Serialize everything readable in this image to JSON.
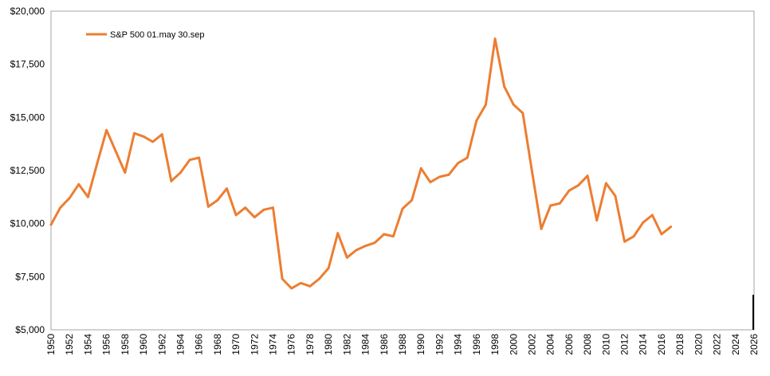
{
  "chart_data": {
    "type": "line",
    "title": "",
    "xlabel": "",
    "ylabel": "",
    "xlim": [
      1950,
      2026
    ],
    "ylim": [
      5000,
      20000
    ],
    "y_ticks": [
      5000,
      7500,
      10000,
      12500,
      15000,
      17500,
      20000
    ],
    "y_tick_labels": [
      "$5,000",
      "$7,500",
      "$10,000",
      "$12,500",
      "$15,000",
      "$17,500",
      "$20,000"
    ],
    "x_ticks": [
      1950,
      1952,
      1954,
      1956,
      1958,
      1960,
      1962,
      1964,
      1966,
      1968,
      1970,
      1972,
      1974,
      1976,
      1978,
      1980,
      1982,
      1984,
      1986,
      1988,
      1990,
      1992,
      1994,
      1996,
      1998,
      2000,
      2002,
      2004,
      2006,
      2008,
      2010,
      2012,
      2014,
      2016,
      2018,
      2020,
      2022,
      2024,
      2026
    ],
    "x_tick_labels": [
      "1950",
      "1952",
      "1954",
      "1956",
      "1958",
      "1960",
      "1962",
      "1964",
      "1966",
      "1968",
      "1970",
      "1972",
      "1974",
      "1976",
      "1978",
      "1980",
      "1982",
      "1984",
      "1986",
      "1988",
      "1990",
      "1992",
      "1994",
      "1996",
      "1998",
      "2000",
      "2002",
      "2004",
      "2006",
      "2008",
      "2010",
      "2012",
      "2014",
      "2016",
      "2018",
      "2020",
      "2022",
      "2024",
      "2026"
    ],
    "grid": false,
    "legend_position": "top-left",
    "series": [
      {
        "name": "S&P 500   01.may  30.sep",
        "color": "#ED7D31",
        "x": [
          1950,
          1951,
          1952,
          1953,
          1954,
          1955,
          1956,
          1957,
          1958,
          1959,
          1960,
          1961,
          1962,
          1963,
          1964,
          1965,
          1966,
          1967,
          1968,
          1969,
          1970,
          1971,
          1972,
          1973,
          1974,
          1975,
          1976,
          1977,
          1978,
          1979,
          1980,
          1981,
          1982,
          1983,
          1984,
          1985,
          1986,
          1987,
          1988,
          1989,
          1990,
          1991,
          1992,
          1993,
          1994,
          1995,
          1996,
          1997,
          1998,
          1999,
          2000,
          2001,
          2002,
          2003,
          2004,
          2005,
          2006,
          2007,
          2008,
          2009,
          2010,
          2011,
          2012,
          2013,
          2014,
          2015,
          2016,
          2017
        ],
        "y": [
          9950,
          10750,
          11200,
          11850,
          11250,
          12850,
          14400,
          13400,
          12400,
          14250,
          14100,
          13850,
          14200,
          12000,
          12400,
          13000,
          13100,
          10800,
          11100,
          11650,
          10400,
          10750,
          10300,
          10650,
          10750,
          7400,
          6950,
          7200,
          7050,
          7400,
          7900,
          9550,
          8400,
          8750,
          8950,
          9100,
          9500,
          9400,
          10700,
          11100,
          12600,
          11950,
          12200,
          12300,
          12850,
          13100,
          14850,
          15600,
          18700,
          16450,
          15600,
          15200,
          12450,
          9750,
          10850,
          10950,
          11550,
          11800,
          12250,
          10150,
          11900,
          11300,
          9150,
          9400,
          10050,
          10400,
          9500,
          9850
        ]
      }
    ]
  }
}
